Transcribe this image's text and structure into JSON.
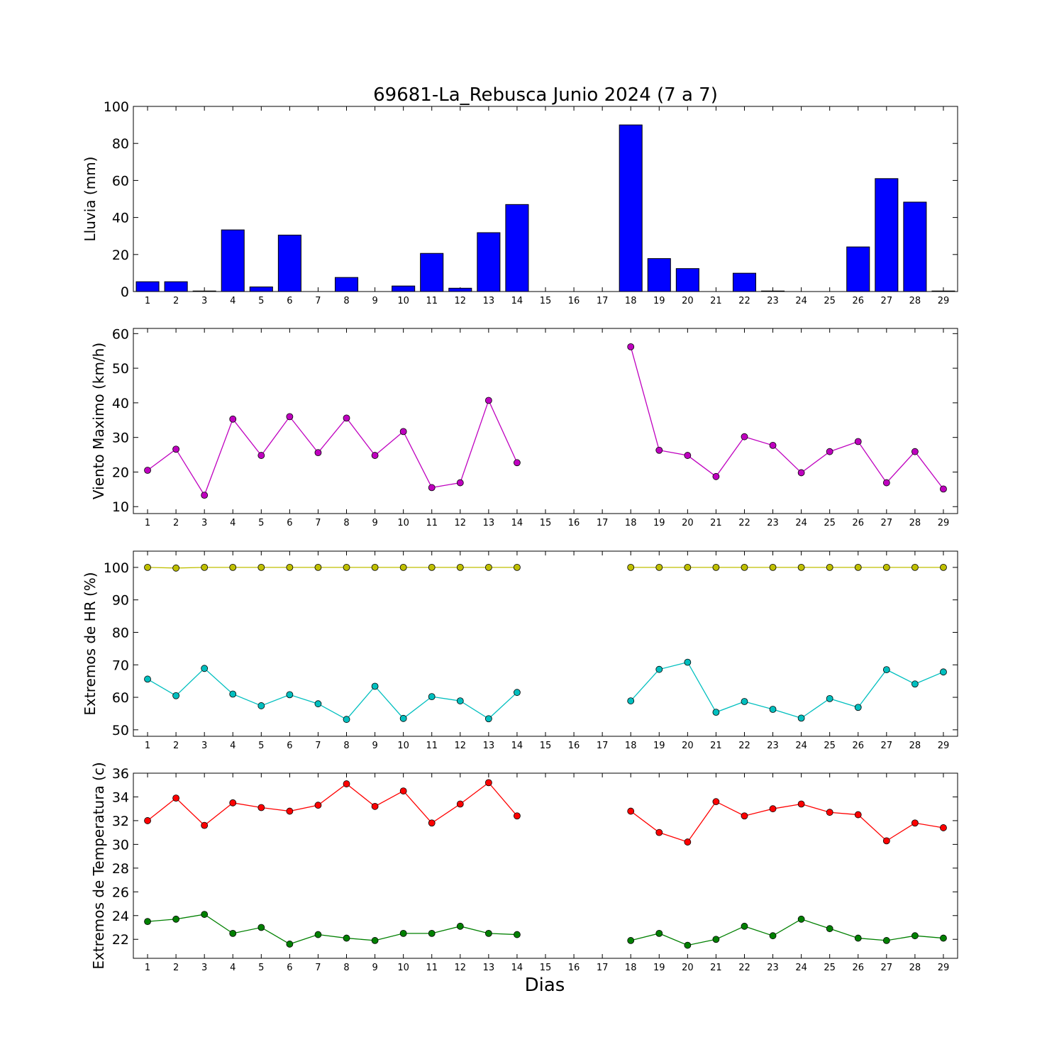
{
  "figure": {
    "title": "69681-La_Rebusca Junio 2024  (7 a 7)",
    "xlabel": "Dias"
  },
  "chart_data": [
    {
      "type": "bar",
      "ylabel": "Lluvia (mm)",
      "ylim": [
        0,
        100
      ],
      "yticks": [
        0,
        20,
        40,
        60,
        80,
        100
      ],
      "categories": [
        "1",
        "2",
        "3",
        "4",
        "5",
        "6",
        "7",
        "8",
        "9",
        "10",
        "11",
        "12",
        "13",
        "14",
        "15",
        "16",
        "17",
        "18",
        "19",
        "20",
        "21",
        "22",
        "23",
        "24",
        "25",
        "26",
        "27",
        "28",
        "29"
      ],
      "series": [
        {
          "color": "#0000ff",
          "values": [
            5.3,
            5.3,
            0.3,
            33.3,
            2.5,
            30.5,
            0,
            7.6,
            0,
            3.0,
            20.6,
            1.8,
            31.8,
            47.0,
            0,
            0,
            0,
            90.0,
            17.8,
            12.4,
            0,
            9.9,
            0.3,
            0,
            0,
            24.1,
            61.0,
            48.3,
            0.3
          ]
        }
      ]
    },
    {
      "type": "line",
      "ylabel": "Viento Maximo (km/h)",
      "ylim": [
        8,
        61.5
      ],
      "yticks": [
        10,
        20,
        30,
        40,
        50,
        60
      ],
      "categories": [
        "1",
        "2",
        "3",
        "4",
        "5",
        "6",
        "7",
        "8",
        "9",
        "10",
        "11",
        "12",
        "13",
        "14",
        "15",
        "16",
        "17",
        "18",
        "19",
        "20",
        "21",
        "22",
        "23",
        "24",
        "25",
        "26",
        "27",
        "28",
        "29"
      ],
      "series": [
        {
          "color": "#bf00bf",
          "values": [
            20.5,
            26.6,
            13.3,
            35.3,
            24.8,
            36.0,
            25.6,
            35.6,
            24.8,
            31.7,
            15.5,
            16.9,
            40.7,
            22.7,
            null,
            null,
            null,
            56.2,
            26.3,
            24.8,
            18.7,
            30.2,
            27.7,
            19.8,
            25.9,
            28.8,
            16.9,
            25.9,
            15.1
          ]
        }
      ]
    },
    {
      "type": "line",
      "ylabel": "Extremos de HR (%)",
      "ylim": [
        48,
        105
      ],
      "yticks": [
        50,
        60,
        70,
        80,
        90,
        100
      ],
      "categories": [
        "1",
        "2",
        "3",
        "4",
        "5",
        "6",
        "7",
        "8",
        "9",
        "10",
        "11",
        "12",
        "13",
        "14",
        "15",
        "16",
        "17",
        "18",
        "19",
        "20",
        "21",
        "22",
        "23",
        "24",
        "25",
        "26",
        "27",
        "28",
        "29"
      ],
      "series": [
        {
          "color": "#bfbf00",
          "values": [
            100,
            99.8,
            100,
            100,
            100,
            100,
            100,
            100,
            100,
            100,
            100,
            100,
            100,
            100,
            null,
            null,
            null,
            100,
            100,
            100,
            100,
            100,
            100,
            100,
            100,
            100,
            100,
            100,
            100
          ]
        },
        {
          "color": "#00bfbf",
          "values": [
            65.6,
            60.5,
            68.9,
            61.0,
            57.4,
            60.8,
            58.0,
            53.2,
            63.4,
            53.5,
            60.2,
            58.9,
            53.4,
            61.5,
            null,
            null,
            null,
            58.9,
            68.6,
            70.8,
            55.4,
            58.7,
            56.3,
            53.6,
            59.6,
            56.9,
            68.5,
            64.1,
            67.8
          ]
        }
      ]
    },
    {
      "type": "line",
      "ylabel": "Extremos de Temperatura (c)",
      "ylim": [
        20.4,
        36
      ],
      "yticks": [
        22,
        24,
        26,
        28,
        30,
        32,
        34,
        36
      ],
      "categories": [
        "1",
        "2",
        "3",
        "4",
        "5",
        "6",
        "7",
        "8",
        "9",
        "10",
        "11",
        "12",
        "13",
        "14",
        "15",
        "16",
        "17",
        "18",
        "19",
        "20",
        "21",
        "22",
        "23",
        "24",
        "25",
        "26",
        "27",
        "28",
        "29"
      ],
      "series": [
        {
          "color": "#ff0000",
          "values": [
            32.0,
            33.9,
            31.6,
            33.5,
            33.1,
            32.8,
            33.3,
            35.1,
            33.2,
            34.5,
            31.8,
            33.4,
            35.2,
            32.4,
            null,
            null,
            null,
            32.8,
            31.0,
            30.2,
            33.6,
            32.4,
            33.0,
            33.4,
            32.7,
            32.5,
            30.3,
            31.8,
            31.4
          ]
        },
        {
          "color": "#008000",
          "values": [
            23.5,
            23.7,
            24.1,
            22.5,
            23.0,
            21.6,
            22.4,
            22.1,
            21.9,
            22.5,
            22.5,
            23.1,
            22.5,
            22.4,
            null,
            null,
            null,
            21.9,
            22.5,
            21.5,
            22.0,
            23.1,
            22.3,
            23.7,
            22.9,
            22.1,
            21.9,
            22.3,
            22.1
          ]
        }
      ]
    }
  ]
}
